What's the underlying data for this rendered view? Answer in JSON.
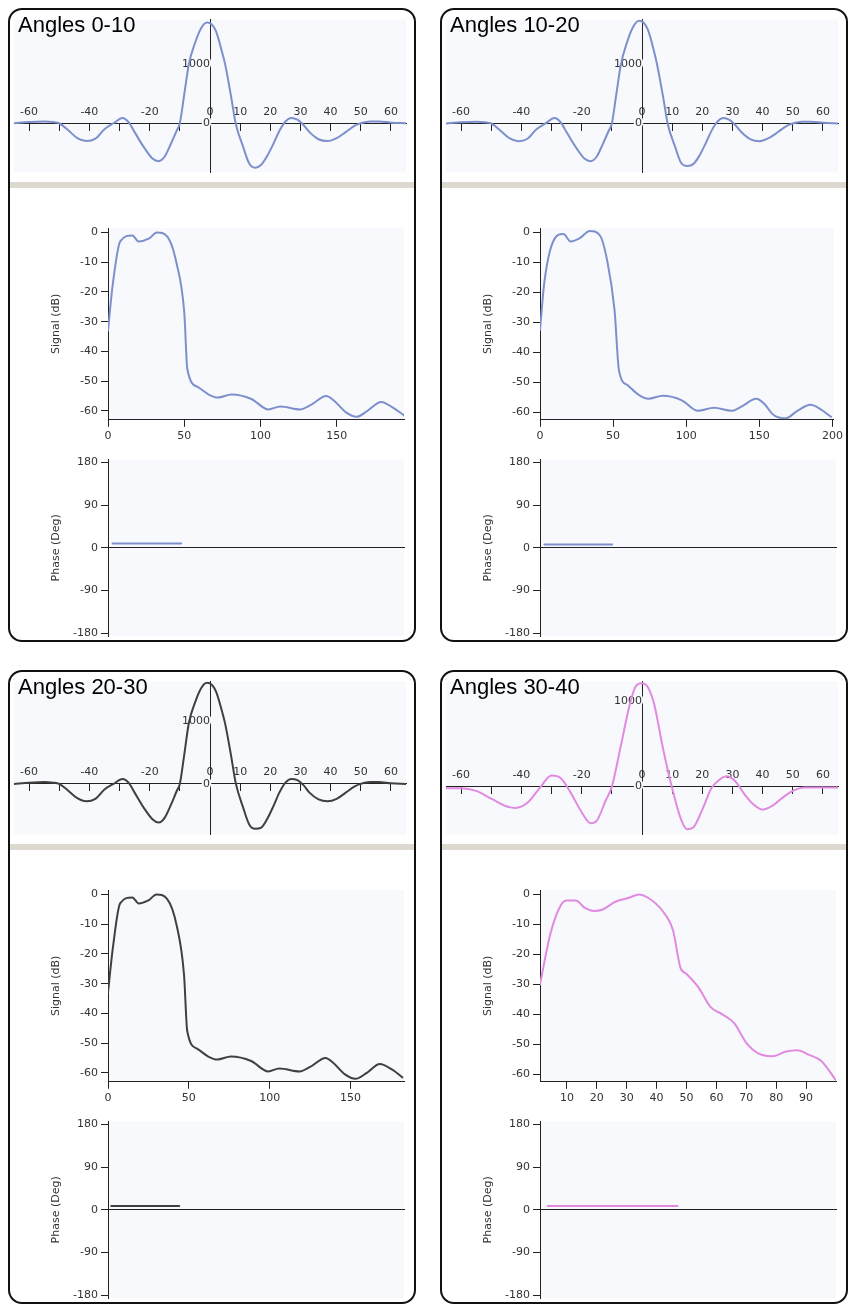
{
  "chart_data": [
    {
      "type": "line",
      "title": "Angles 0-10",
      "xlim": [
        -65,
        65
      ],
      "ylim": [
        -830,
        1750
      ],
      "xticks": [
        -60,
        {
          "value": -50,
          "label": null
        },
        -40,
        {
          "value": -30,
          "label": null
        },
        -20,
        {
          "value": -10,
          "label": null
        },
        0,
        10,
        20,
        30,
        40,
        50,
        60
      ],
      "yticks": [
        0,
        1000
      ],
      "series": [
        {
          "color": "#7d90cc",
          "x": [
            -65,
            -60,
            -55,
            -52,
            -50,
            -47,
            -44,
            -41,
            -38,
            -35,
            -32,
            -29,
            -27,
            -25,
            -22,
            -19,
            -17,
            -15,
            -13,
            -11,
            -10,
            -8.5,
            -7,
            -5,
            -3,
            -1,
            0,
            2,
            4,
            5,
            7,
            8.5,
            11,
            13,
            15,
            17,
            19,
            21,
            23,
            25,
            27,
            29,
            31,
            33,
            36,
            39,
            42,
            45,
            48,
            50,
            53,
            56,
            60,
            65
          ],
          "values": [
            0,
            20,
            30,
            20,
            0,
            -120,
            -250,
            -300,
            -260,
            -100,
            0,
            90,
            20,
            -150,
            -400,
            -600,
            -640,
            -560,
            -350,
            -120,
            0,
            500,
            1000,
            1350,
            1600,
            1700,
            1690,
            1550,
            1200,
            1000,
            450,
            0,
            -400,
            -680,
            -750,
            -700,
            -550,
            -350,
            -130,
            30,
            90,
            60,
            -30,
            -150,
            -270,
            -300,
            -250,
            -150,
            -40,
            0,
            30,
            30,
            10,
            0
          ]
        }
      ]
    },
    {
      "type": "line",
      "ylabel": "Signal (dB)",
      "xlim": [
        0,
        194
      ],
      "ylim": [
        -63,
        1.5
      ],
      "xticks": [
        0,
        50,
        100,
        150
      ],
      "yticks": [
        -60,
        -50,
        -40,
        -30,
        -20,
        -10,
        0
      ],
      "series": [
        {
          "color": "#7d90cc",
          "x": [
            0,
            3,
            8,
            16,
            20,
            27,
            32,
            39,
            45,
            50,
            52,
            59,
            66,
            72,
            81,
            94,
            105,
            113,
            126,
            133,
            143,
            148,
            156,
            163,
            170,
            179,
            187,
            194
          ],
          "values": [
            -33,
            -18,
            -3,
            -1,
            -3,
            -2,
            0,
            -1.5,
            -10.5,
            -27,
            -46,
            -52,
            -54.5,
            -55.5,
            -54.5,
            -56,
            -59.5,
            -58.5,
            -59.5,
            -58,
            -55,
            -56.5,
            -60.5,
            -62,
            -60,
            -57,
            -59,
            -61.5
          ]
        }
      ]
    },
    {
      "type": "line",
      "ylabel": "Phase (Deg)",
      "xlim": [
        0,
        194
      ],
      "ylim": [
        -186,
        186
      ],
      "yticks": [
        -180,
        -90,
        0,
        90,
        180
      ],
      "tick_labels": "y",
      "series": [
        {
          "color": "#7d90cc",
          "x": [
            3,
            48
          ],
          "values": [
            9,
            9
          ]
        }
      ]
    },
    {
      "type": "line",
      "title": "Angles 10-20",
      "xlim": [
        -65,
        65
      ],
      "ylim": [
        -830,
        1760
      ],
      "xticks": [
        -60,
        {
          "value": -50,
          "label": null
        },
        -40,
        {
          "value": -30,
          "label": null
        },
        -20,
        {
          "value": -10,
          "label": null
        },
        0,
        10,
        20,
        30,
        40,
        50,
        60
      ],
      "yticks": [
        0,
        1000
      ],
      "series": [
        {
          "color": "#7d90cc",
          "x": [
            -65,
            -60,
            -55,
            -52,
            -50,
            -47,
            -44,
            -41,
            -38,
            -35,
            -32,
            -29,
            -27,
            -25,
            -22,
            -19,
            -17,
            -15,
            -13,
            -11,
            -10,
            -8.5,
            -7,
            -5,
            -3,
            -1,
            0,
            2,
            4,
            5,
            7,
            8.5,
            11,
            13,
            15,
            17,
            19,
            21,
            23,
            25,
            27,
            29,
            31,
            33,
            36,
            39,
            42,
            45,
            48,
            50,
            53,
            56,
            60,
            65
          ],
          "values": [
            0,
            20,
            30,
            20,
            0,
            -120,
            -250,
            -300,
            -260,
            -100,
            0,
            90,
            20,
            -150,
            -400,
            -600,
            -640,
            -560,
            -350,
            -120,
            0,
            500,
            1000,
            1370,
            1630,
            1740,
            1730,
            1580,
            1220,
            1000,
            450,
            0,
            -400,
            -670,
            -720,
            -690,
            -550,
            -350,
            -130,
            30,
            90,
            60,
            -30,
            -150,
            -270,
            -300,
            -250,
            -150,
            -40,
            0,
            30,
            30,
            10,
            0
          ]
        }
      ]
    },
    {
      "type": "line",
      "ylabel": "Signal (dB)",
      "xlim": [
        0,
        201
      ],
      "ylim": [
        -62.5,
        1.5
      ],
      "xticks": [
        0,
        50,
        100,
        150,
        200
      ],
      "yticks": [
        -60,
        -50,
        -40,
        -30,
        -20,
        -10,
        0
      ],
      "series": [
        {
          "color": "#7d90cc",
          "x": [
            0,
            3,
            9,
            16,
            21,
            27,
            34,
            41,
            46,
            51,
            54,
            60,
            67,
            74,
            84,
            97,
            108,
            119,
            131,
            138,
            148,
            153,
            160,
            168,
            176,
            185,
            192,
            199
          ],
          "values": [
            -32.5,
            -16.5,
            -3,
            -0.5,
            -3,
            -2,
            0.5,
            -1,
            -9.5,
            -26,
            -46,
            -51,
            -54,
            -55.5,
            -54.5,
            -56,
            -59.5,
            -58.5,
            -59.5,
            -58,
            -55.5,
            -57,
            -61,
            -62,
            -59.5,
            -57.5,
            -59,
            -61.5
          ]
        }
      ]
    },
    {
      "type": "line",
      "ylabel": "Phase (Deg)",
      "xlim": [
        0,
        201
      ],
      "ylim": [
        -186,
        186
      ],
      "yticks": [
        -180,
        -90,
        0,
        90,
        180
      ],
      "tick_labels": "y",
      "series": [
        {
          "color": "#7d90cc",
          "x": [
            3,
            49
          ],
          "values": [
            7,
            7
          ]
        }
      ]
    },
    {
      "type": "line",
      "title": "Angles 20-30",
      "xlim": [
        -65,
        65
      ],
      "ylim": [
        -810,
        1640
      ],
      "xticks": [
        -60,
        {
          "value": -50,
          "label": null
        },
        -40,
        {
          "value": -30,
          "label": null
        },
        -20,
        {
          "value": -10,
          "label": null
        },
        0,
        10,
        20,
        30,
        40,
        50,
        60
      ],
      "yticks": [
        0,
        1000
      ],
      "series": [
        {
          "color": "#404040",
          "x": [
            -65,
            -60,
            -55,
            -52,
            -50,
            -47,
            -44,
            -41,
            -38,
            -35,
            -32,
            -29,
            -27,
            -25,
            -22,
            -19,
            -17,
            -15,
            -13,
            -11,
            -10,
            -8.5,
            -7,
            -5,
            -3,
            -1,
            0,
            2,
            4,
            5,
            7,
            8.5,
            11,
            13,
            15,
            17,
            19,
            21,
            23,
            25,
            27,
            29,
            31,
            33,
            36,
            39,
            42,
            45,
            48,
            50,
            53,
            56,
            60,
            65
          ],
          "values": [
            0,
            20,
            30,
            20,
            0,
            -110,
            -230,
            -280,
            -240,
            -90,
            0,
            80,
            20,
            -140,
            -380,
            -570,
            -620,
            -540,
            -340,
            -110,
            0,
            480,
            980,
            1300,
            1530,
            1620,
            1610,
            1480,
            1160,
            970,
            450,
            20,
            -380,
            -650,
            -720,
            -700,
            -560,
            -360,
            -140,
            20,
            80,
            60,
            -20,
            -140,
            -250,
            -280,
            -240,
            -140,
            -40,
            0,
            30,
            30,
            10,
            0
          ]
        }
      ]
    },
    {
      "type": "line",
      "ylabel": "Signal (dB)",
      "xlim": [
        0,
        183
      ],
      "ylim": [
        -63,
        1.5
      ],
      "xticks": [
        0,
        50,
        100,
        150
      ],
      "yticks": [
        -60,
        -50,
        -40,
        -30,
        -20,
        -10,
        0
      ],
      "series": [
        {
          "color": "#404040",
          "x": [
            0,
            3,
            7.5,
            15,
            19,
            25,
            30,
            36.5,
            42.5,
            47,
            49,
            55.5,
            62,
            67.5,
            76,
            88.5,
            99,
            106,
            118.5,
            125,
            134.5,
            139,
            146.5,
            153,
            160,
            168,
            176,
            182
          ],
          "values": [
            -33,
            -18,
            -3,
            -1,
            -3,
            -2,
            0,
            -1.5,
            -10.5,
            -27,
            -46,
            -52,
            -54.5,
            -55.5,
            -54.5,
            -56,
            -59.5,
            -58.5,
            -59.5,
            -58,
            -55,
            -56.5,
            -60.5,
            -62,
            -60,
            -57,
            -59,
            -61.5
          ]
        }
      ]
    },
    {
      "type": "line",
      "ylabel": "Phase (Deg)",
      "xlim": [
        0,
        183
      ],
      "ylim": [
        -186,
        186
      ],
      "yticks": [
        -180,
        -90,
        0,
        90,
        180
      ],
      "tick_labels": "y",
      "series": [
        {
          "color": "#404040",
          "x": [
            2,
            44
          ],
          "values": [
            8,
            8
          ]
        }
      ]
    },
    {
      "type": "line",
      "title": "Angles 30-40",
      "xlim": [
        -65,
        65
      ],
      "ylim": [
        -560,
        1230
      ],
      "xticks": [
        -60,
        {
          "value": -50,
          "label": null
        },
        -40,
        {
          "value": -30,
          "label": null
        },
        -20,
        {
          "value": -10,
          "label": null
        },
        0,
        10,
        20,
        30,
        40,
        50,
        60
      ],
      "yticks": [
        0,
        1000
      ],
      "series": [
        {
          "color": "#e08ae0",
          "x": [
            -65,
            -60,
            -55,
            -50,
            -45,
            -42,
            -38,
            -34,
            -30,
            -27,
            -24,
            -20,
            -17,
            -15,
            -12,
            -10,
            -7,
            -4,
            -2,
            0,
            2,
            4,
            7,
            10,
            13,
            15,
            17,
            20,
            23,
            26,
            28,
            31,
            34,
            37,
            40,
            43,
            47,
            50,
            54,
            58,
            62,
            65
          ],
          "values": [
            -20,
            -20,
            -50,
            -140,
            -230,
            -250,
            -190,
            -20,
            130,
            100,
            -50,
            -300,
            -430,
            -400,
            -160,
            0,
            480,
            970,
            1180,
            1210,
            1160,
            970,
            440,
            -20,
            -390,
            -500,
            -480,
            -270,
            -20,
            90,
            120,
            60,
            -90,
            -210,
            -270,
            -230,
            -120,
            -50,
            -10,
            -10,
            -10,
            -10
          ]
        }
      ]
    },
    {
      "type": "line",
      "ylabel": "Signal (dB)",
      "xlim": [
        1,
        100
      ],
      "ylim": [
        -62.5,
        1.5
      ],
      "xticks": [
        10,
        20,
        30,
        40,
        50,
        60,
        70,
        80,
        90
      ],
      "yticks": [
        -60,
        -50,
        -40,
        -30,
        -20,
        -10,
        0
      ],
      "series": [
        {
          "color": "#e08ae0",
          "x": [
            1,
            4.5,
            8,
            10,
            13,
            16,
            19,
            22,
            26,
            31,
            34,
            37,
            42,
            45.5,
            48,
            50,
            54,
            58,
            62,
            66,
            70,
            74,
            79,
            83,
            87,
            91,
            95,
            100
          ],
          "values": [
            -30,
            -13,
            -3.5,
            -2,
            -2,
            -4.5,
            -5.5,
            -5,
            -2.5,
            -1,
            0,
            -1,
            -5.5,
            -12,
            -24.5,
            -26.5,
            -31,
            -37.5,
            -40,
            -43,
            -49.5,
            -53,
            -54,
            -52.5,
            -52,
            -53.5,
            -55.5,
            -62
          ]
        }
      ]
    },
    {
      "type": "line",
      "ylabel": "Phase (Deg)",
      "xlim": [
        1,
        100
      ],
      "ylim": [
        -186,
        186
      ],
      "yticks": [
        -180,
        -90,
        0,
        90,
        180
      ],
      "tick_labels": "y",
      "series": [
        {
          "color": "#e08ae0",
          "x": [
            3.6,
            47
          ],
          "values": [
            8,
            8
          ]
        }
      ]
    }
  ]
}
